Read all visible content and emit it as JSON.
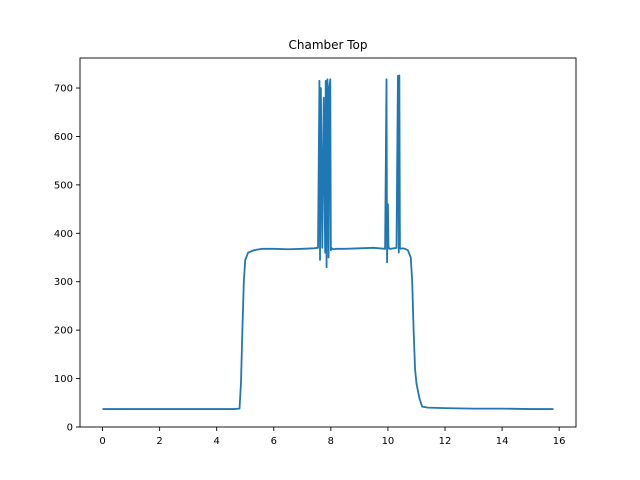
{
  "chart_data": {
    "type": "line",
    "title": "Chamber Top",
    "xlabel": "",
    "ylabel": "",
    "xlim": [
      -0.79,
      16.59
    ],
    "ylim": [
      0,
      762
    ],
    "x_ticks": [
      0,
      2,
      4,
      6,
      8,
      10,
      12,
      14,
      16
    ],
    "y_ticks": [
      0,
      100,
      200,
      300,
      400,
      500,
      600,
      700
    ],
    "grid": false,
    "legend": "none",
    "line_color": "#1f77b4",
    "series": [
      {
        "x": [
          0.0,
          1.0,
          2.0,
          3.0,
          4.0,
          4.6,
          4.8,
          4.85,
          4.9,
          4.95,
          5.0,
          5.1,
          5.3,
          5.6,
          6.0,
          6.5,
          7.0,
          7.4,
          7.55,
          7.6,
          7.62,
          7.65,
          7.7,
          7.75,
          7.8,
          7.82,
          7.85,
          7.88,
          7.9,
          7.92,
          7.95,
          7.98,
          8.0,
          8.02,
          8.05,
          8.1,
          8.2,
          8.5,
          9.0,
          9.5,
          9.9,
          9.95,
          9.97,
          10.0,
          10.02,
          10.05,
          10.1,
          10.2,
          10.3,
          10.35,
          10.38,
          10.4,
          10.42,
          10.45,
          10.5,
          10.6,
          10.7,
          10.8,
          10.85,
          10.9,
          10.95,
          11.0,
          11.1,
          11.2,
          11.4,
          12.0,
          13.0,
          14.0,
          15.0,
          15.8
        ],
        "y": [
          37,
          37,
          37,
          37,
          37,
          37,
          38,
          90,
          200,
          300,
          345,
          360,
          365,
          368,
          368,
          367,
          368,
          369,
          370,
          715,
          345,
          700,
          370,
          680,
          360,
          715,
          330,
          718,
          690,
          350,
          700,
          718,
          365,
          370,
          368,
          367,
          368,
          368,
          369,
          370,
          368,
          718,
          340,
          460,
          372,
          368,
          368,
          369,
          370,
          725,
          360,
          726,
          370,
          368,
          369,
          368,
          365,
          350,
          300,
          200,
          120,
          90,
          60,
          42,
          40,
          39,
          38,
          38,
          37,
          37
        ]
      }
    ]
  }
}
